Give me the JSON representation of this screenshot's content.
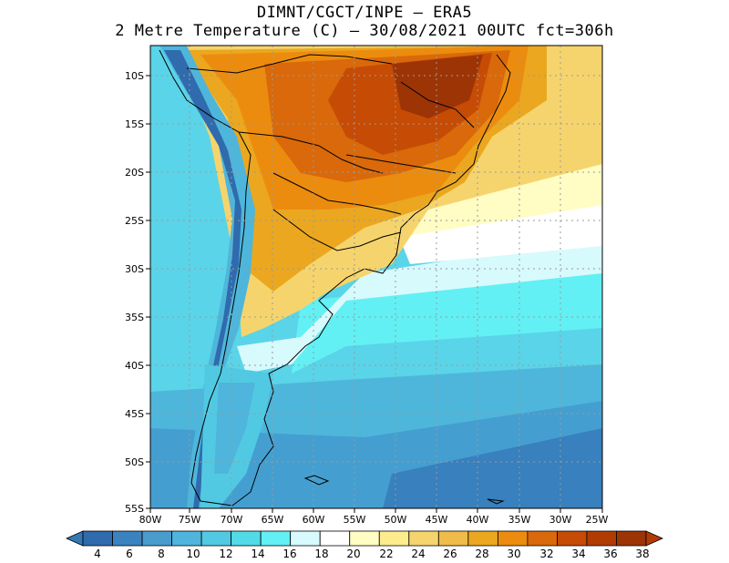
{
  "title": {
    "line1": "DIMNT/CGCT/INPE –  ERA5",
    "line2": "2 Metre Temperature (C) –  30/08/2021 00UTC fct=306h"
  },
  "map": {
    "lon_labels": [
      "80W",
      "75W",
      "70W",
      "65W",
      "60W",
      "55W",
      "50W",
      "45W",
      "40W",
      "35W",
      "30W",
      "25W"
    ],
    "lat_labels": [
      "10S",
      "15S",
      "20S",
      "25S",
      "30S",
      "35S",
      "40S",
      "45S",
      "50S",
      "55S"
    ],
    "lon_range": [
      -80,
      -25
    ],
    "lat_range": [
      -55,
      -7
    ]
  },
  "colorbar": {
    "labels": [
      "4",
      "6",
      "8",
      "10",
      "12",
      "14",
      "16",
      "18",
      "20",
      "22",
      "24",
      "26",
      "28",
      "30",
      "32",
      "34",
      "36",
      "38"
    ],
    "colors": [
      "#2f6bad",
      "#3b83c0",
      "#4a9ccd",
      "#4fb5dc",
      "#52c9e2",
      "#52dbe6",
      "#62f0f4",
      "#d7fafd",
      "#ffffff",
      "#fffcc4",
      "#fcec8c",
      "#f6d46d",
      "#efbc4a",
      "#eba71f",
      "#ec8c0e",
      "#d9690a",
      "#c64b05",
      "#b03c03",
      "#9c3406"
    ],
    "under_color": "#3678b5",
    "over_color": "#b23b05"
  }
}
